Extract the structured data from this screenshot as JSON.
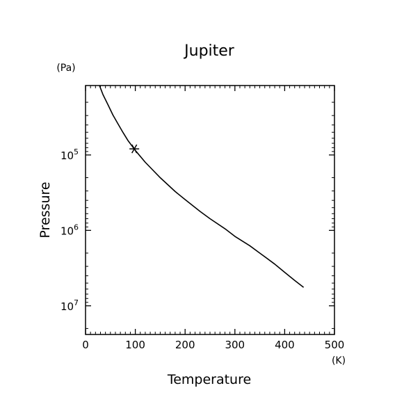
{
  "chart_data": {
    "type": "line",
    "title": "Jupiter",
    "xlabel": "Temperature",
    "ylabel": "Pressure",
    "x_unit": "(K)",
    "y_unit": "(Pa)",
    "xlim": [
      0,
      500
    ],
    "ylim": [
      12000.0,
      24000000.0
    ],
    "y_scale": "log",
    "y_inverted": true,
    "grid": false,
    "x_ticks": [
      {
        "value": 0,
        "label": "0"
      },
      {
        "value": 100,
        "label": "100"
      },
      {
        "value": 200,
        "label": "200"
      },
      {
        "value": 300,
        "label": "300"
      },
      {
        "value": 400,
        "label": "400"
      },
      {
        "value": 500,
        "label": "500"
      }
    ],
    "y_ticks": [
      {
        "value": 100000,
        "base": "10",
        "exp": "5"
      },
      {
        "value": 1000000,
        "base": "10",
        "exp": "6"
      },
      {
        "value": 10000000,
        "base": "10",
        "exp": "7"
      }
    ],
    "series": [
      {
        "style": "line",
        "color": "#000000",
        "points": [
          [
            28,
            12000
          ],
          [
            35,
            15800
          ],
          [
            45,
            21500
          ],
          [
            55,
            29500
          ],
          [
            65,
            38500
          ],
          [
            75,
            50000
          ],
          [
            85,
            64000
          ],
          [
            100,
            87000
          ],
          [
            120,
            125000
          ],
          [
            150,
            200000
          ],
          [
            180,
            305000
          ],
          [
            200,
            390000
          ],
          [
            230,
            560000
          ],
          [
            250,
            700000
          ],
          [
            280,
            950000
          ],
          [
            300,
            1200000
          ],
          [
            330,
            1600000
          ],
          [
            350,
            2000000
          ],
          [
            380,
            2800000
          ],
          [
            400,
            3600000
          ],
          [
            420,
            4600000
          ],
          [
            438,
            5700000
          ]
        ]
      }
    ],
    "markers": [
      {
        "symbol": "asterisk",
        "x": 98,
        "y": 83000
      }
    ]
  }
}
